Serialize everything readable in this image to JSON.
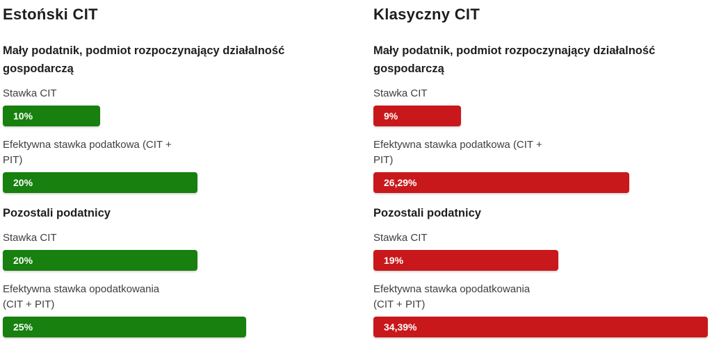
{
  "page": {
    "background": "#ffffff"
  },
  "columns": [
    {
      "title": "Estoński CIT",
      "bar_color": "#17800f",
      "sections": [
        {
          "heading": "Mały podatnik, podmiot rozpoczynający działalność gospodarczą",
          "rows": [
            {
              "label": "Stawka CIT",
              "value_label": "10%",
              "value_pct": 10
            },
            {
              "label": "Efektywna stawka podatkowa (CIT + PIT)",
              "value_label": "20%",
              "value_pct": 20
            }
          ]
        },
        {
          "heading": "Pozostali podatnicy",
          "rows": [
            {
              "label": "Stawka CIT",
              "value_label": "20%",
              "value_pct": 20
            },
            {
              "label": "Efektywna stawka opodatkowania (CIT + PIT)",
              "value_label": "25%",
              "value_pct": 25
            }
          ]
        }
      ]
    },
    {
      "title": "Klasyczny CIT",
      "bar_color": "#c9181b",
      "sections": [
        {
          "heading": "Mały podatnik, podmiot rozpoczynający działalność gospodarczą",
          "rows": [
            {
              "label": "Stawka CIT",
              "value_label": "9%",
              "value_pct": 9
            },
            {
              "label": "Efektywna stawka podatkowa (CIT + PIT)",
              "value_label": "26,29%",
              "value_pct": 26.29
            }
          ]
        },
        {
          "heading": "Pozostali podatnicy",
          "rows": [
            {
              "label": "Stawka CIT",
              "value_label": "19%",
              "value_pct": 19
            },
            {
              "label": "Efektywna stawka opodatkowania (CIT + PIT)",
              "value_label": "34,39%",
              "value_pct": 34.39
            }
          ]
        }
      ]
    }
  ],
  "chart_data": {
    "type": "bar",
    "orientation": "horizontal",
    "unit": "%",
    "categories": [
      "Mały podatnik, podmiot rozpoczynający działalność gospodarczą — Stawka CIT",
      "Mały podatnik, podmiot rozpoczynający działalność gospodarczą — Efektywna stawka podatkowa (CIT + PIT)",
      "Pozostali podatnicy — Stawka CIT",
      "Pozostali podatnicy — Efektywna stawka opodatkowania (CIT + PIT)"
    ],
    "series": [
      {
        "name": "Estoński CIT",
        "color": "#17800f",
        "values": [
          10,
          20,
          20,
          25
        ],
        "value_labels": [
          "10%",
          "20%",
          "20%",
          "25%"
        ]
      },
      {
        "name": "Klasyczny CIT",
        "color": "#c9181b",
        "values": [
          9,
          26.29,
          19,
          34.39
        ],
        "value_labels": [
          "9%",
          "26,29%",
          "19%",
          "34,39%"
        ]
      }
    ],
    "xlim": [
      0,
      35
    ],
    "grid": false,
    "legend_position": "none",
    "value_labels_inside_bars": true
  }
}
